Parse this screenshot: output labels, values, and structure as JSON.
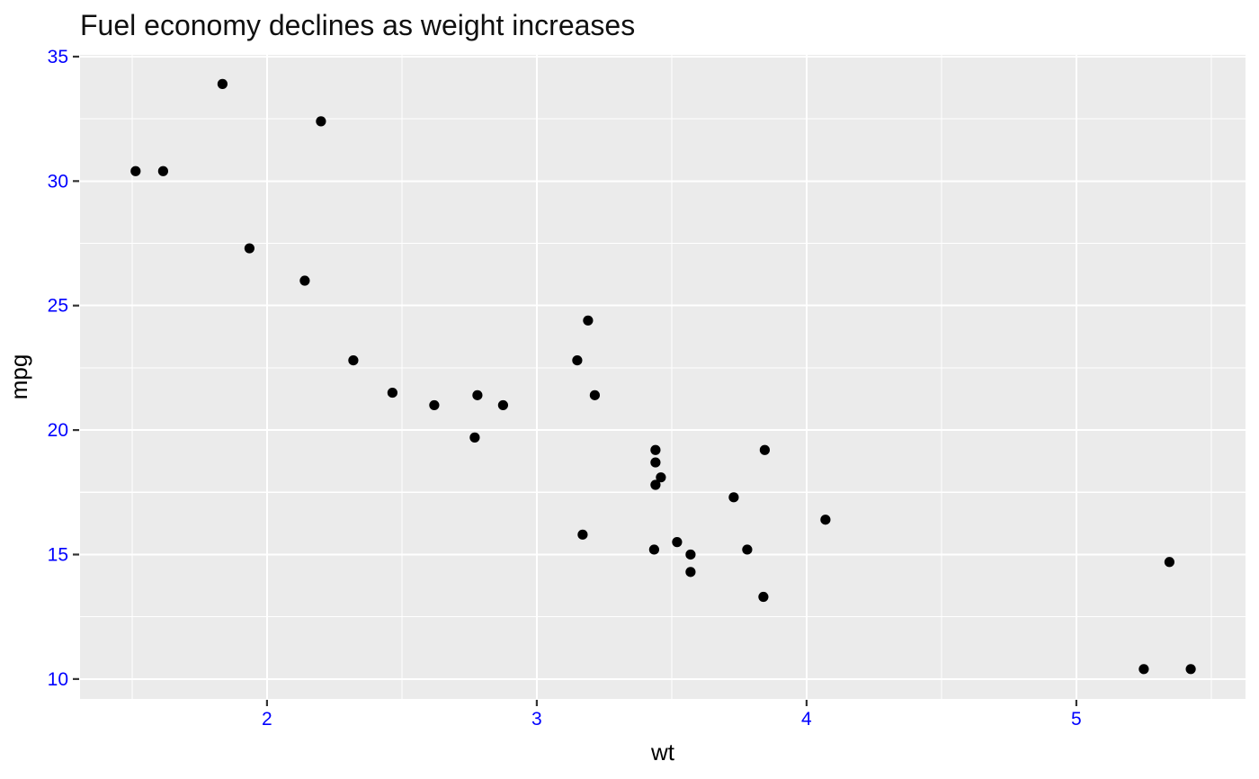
{
  "title": "Fuel economy declines as weight increases",
  "colors": {
    "page_background": "#FFFFFF",
    "panel_background": "#EBEBEB",
    "grid_major": "#FFFFFF",
    "grid_minor": "#FFFFFF",
    "point_fill": "#000000",
    "axis_tick_label": "#0000FF",
    "tick_mark": "#333333",
    "title_text": "#101010",
    "axis_title_text": "#000000"
  },
  "chart_data": {
    "type": "scatter",
    "title": "Fuel economy declines as weight increases",
    "xlabel": "wt",
    "ylabel": "mpg",
    "x_ticks": [
      2,
      3,
      4,
      5
    ],
    "y_ticks": [
      10,
      15,
      20,
      25,
      30,
      35
    ],
    "x_minor_ticks": [
      1.5,
      2.5,
      3.5,
      4.5,
      5.5
    ],
    "y_minor_ticks": [
      12.5,
      17.5,
      22.5,
      27.5,
      32.5
    ],
    "xlim": [
      1.307,
      5.627
    ],
    "ylim": [
      9.2,
      35.07
    ],
    "grid": true,
    "legend": false,
    "points": [
      [
        2.62,
        21.0
      ],
      [
        2.875,
        21.0
      ],
      [
        2.32,
        22.8
      ],
      [
        3.215,
        21.4
      ],
      [
        3.44,
        18.7
      ],
      [
        3.46,
        18.1
      ],
      [
        3.57,
        14.3
      ],
      [
        3.19,
        24.4
      ],
      [
        3.15,
        22.8
      ],
      [
        3.44,
        19.2
      ],
      [
        3.44,
        17.8
      ],
      [
        4.07,
        16.4
      ],
      [
        3.73,
        17.3
      ],
      [
        3.78,
        15.2
      ],
      [
        5.25,
        10.4
      ],
      [
        5.424,
        10.4
      ],
      [
        5.345,
        14.7
      ],
      [
        2.2,
        32.4
      ],
      [
        1.615,
        30.4
      ],
      [
        1.835,
        33.9
      ],
      [
        2.465,
        21.5
      ],
      [
        3.52,
        15.5
      ],
      [
        3.435,
        15.2
      ],
      [
        3.84,
        13.3
      ],
      [
        3.845,
        19.2
      ],
      [
        1.935,
        27.3
      ],
      [
        2.14,
        26.0
      ],
      [
        1.513,
        30.4
      ],
      [
        3.17,
        15.8
      ],
      [
        2.77,
        19.7
      ],
      [
        3.57,
        15.0
      ],
      [
        2.78,
        21.4
      ]
    ]
  }
}
